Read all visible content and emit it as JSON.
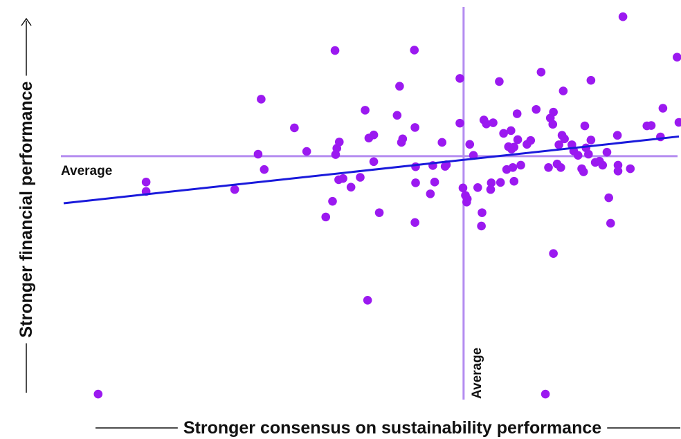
{
  "chart_data": {
    "type": "scatter",
    "title": "",
    "xlabel": "Stronger consensus on sustainability performance",
    "ylabel": "Stronger financial performance",
    "xlim": [
      0,
      100
    ],
    "ylim": [
      0,
      100
    ],
    "grid": false,
    "reference_lines": {
      "x_average": {
        "value": 65,
        "label": "Average"
      },
      "y_average": {
        "value": 62,
        "label": "Average"
      }
    },
    "trendline": {
      "x": [
        0,
        100
      ],
      "y": [
        50,
        67
      ]
    },
    "colors": {
      "points": "#9b19f0",
      "trendline": "#1a1adb",
      "reference": "#b48cf0",
      "text": "#111111"
    },
    "points": [
      {
        "x": 5.6,
        "y": 1.4
      },
      {
        "x": 13.4,
        "y": 55.4
      },
      {
        "x": 13.4,
        "y": 53.0
      },
      {
        "x": 27.8,
        "y": 53.5
      },
      {
        "x": 31.6,
        "y": 62.5
      },
      {
        "x": 32.1,
        "y": 76.5
      },
      {
        "x": 32.6,
        "y": 58.6
      },
      {
        "x": 37.5,
        "y": 69.2
      },
      {
        "x": 39.5,
        "y": 63.2
      },
      {
        "x": 42.6,
        "y": 46.5
      },
      {
        "x": 43.7,
        "y": 50.5
      },
      {
        "x": 44.1,
        "y": 88.9
      },
      {
        "x": 44.2,
        "y": 62.4
      },
      {
        "x": 44.4,
        "y": 64.0
      },
      {
        "x": 44.8,
        "y": 65.6
      },
      {
        "x": 44.7,
        "y": 56.0
      },
      {
        "x": 45.4,
        "y": 56.3
      },
      {
        "x": 46.7,
        "y": 54.1
      },
      {
        "x": 48.2,
        "y": 56.6
      },
      {
        "x": 49.0,
        "y": 73.7
      },
      {
        "x": 49.4,
        "y": 25.3
      },
      {
        "x": 49.6,
        "y": 66.6
      },
      {
        "x": 50.4,
        "y": 67.4
      },
      {
        "x": 50.4,
        "y": 60.6
      },
      {
        "x": 51.3,
        "y": 47.6
      },
      {
        "x": 54.2,
        "y": 72.4
      },
      {
        "x": 54.6,
        "y": 79.8
      },
      {
        "x": 54.9,
        "y": 65.5
      },
      {
        "x": 55.1,
        "y": 66.4
      },
      {
        "x": 57.0,
        "y": 89.0
      },
      {
        "x": 57.1,
        "y": 69.3
      },
      {
        "x": 57.2,
        "y": 59.3
      },
      {
        "x": 57.2,
        "y": 55.2
      },
      {
        "x": 57.1,
        "y": 45.1
      },
      {
        "x": 60.0,
        "y": 59.6
      },
      {
        "x": 59.6,
        "y": 52.4
      },
      {
        "x": 60.3,
        "y": 55.4
      },
      {
        "x": 61.5,
        "y": 65.5
      },
      {
        "x": 62.0,
        "y": 59.4
      },
      {
        "x": 62.2,
        "y": 59.8
      },
      {
        "x": 64.4,
        "y": 81.8
      },
      {
        "x": 64.4,
        "y": 70.4
      },
      {
        "x": 64.9,
        "y": 53.9
      },
      {
        "x": 65.3,
        "y": 52.0
      },
      {
        "x": 65.5,
        "y": 50.3
      },
      {
        "x": 65.6,
        "y": 51.1
      },
      {
        "x": 66.0,
        "y": 65.0
      },
      {
        "x": 66.6,
        "y": 62.2
      },
      {
        "x": 67.3,
        "y": 54.0
      },
      {
        "x": 67.9,
        "y": 44.2
      },
      {
        "x": 68.0,
        "y": 47.6
      },
      {
        "x": 68.3,
        "y": 71.2
      },
      {
        "x": 68.7,
        "y": 70.2
      },
      {
        "x": 69.4,
        "y": 53.5
      },
      {
        "x": 69.5,
        "y": 55.2
      },
      {
        "x": 69.8,
        "y": 70.5
      },
      {
        "x": 70.8,
        "y": 81.0
      },
      {
        "x": 71.0,
        "y": 55.3
      },
      {
        "x": 71.5,
        "y": 67.8
      },
      {
        "x": 72.0,
        "y": 58.6
      },
      {
        "x": 72.3,
        "y": 64.4
      },
      {
        "x": 72.7,
        "y": 68.5
      },
      {
        "x": 72.8,
        "y": 63.8
      },
      {
        "x": 73.0,
        "y": 59.1
      },
      {
        "x": 73.2,
        "y": 64.3
      },
      {
        "x": 73.2,
        "y": 55.6
      },
      {
        "x": 73.7,
        "y": 72.8
      },
      {
        "x": 73.8,
        "y": 66.2
      },
      {
        "x": 74.3,
        "y": 59.7
      },
      {
        "x": 75.3,
        "y": 65.0
      },
      {
        "x": 75.9,
        "y": 66.0
      },
      {
        "x": 76.8,
        "y": 73.9
      },
      {
        "x": 77.6,
        "y": 83.4
      },
      {
        "x": 78.8,
        "y": 59.1
      },
      {
        "x": 79.1,
        "y": 71.7
      },
      {
        "x": 79.5,
        "y": 70.1
      },
      {
        "x": 79.6,
        "y": 73.2
      },
      {
        "x": 79.6,
        "y": 37.2
      },
      {
        "x": 80.2,
        "y": 60.0
      },
      {
        "x": 80.5,
        "y": 64.9
      },
      {
        "x": 80.8,
        "y": 59.1
      },
      {
        "x": 81.0,
        "y": 67.3
      },
      {
        "x": 81.2,
        "y": 78.6
      },
      {
        "x": 81.4,
        "y": 66.4
      },
      {
        "x": 82.6,
        "y": 64.9
      },
      {
        "x": 82.9,
        "y": 63.3
      },
      {
        "x": 83.6,
        "y": 62.2
      },
      {
        "x": 84.2,
        "y": 58.8
      },
      {
        "x": 84.5,
        "y": 58.0
      },
      {
        "x": 84.7,
        "y": 69.7
      },
      {
        "x": 84.9,
        "y": 64.1
      },
      {
        "x": 85.3,
        "y": 62.5
      },
      {
        "x": 85.7,
        "y": 66.1
      },
      {
        "x": 85.7,
        "y": 81.3
      },
      {
        "x": 86.4,
        "y": 60.4
      },
      {
        "x": 87.1,
        "y": 60.7
      },
      {
        "x": 87.6,
        "y": 59.7
      },
      {
        "x": 88.3,
        "y": 63.0
      },
      {
        "x": 88.6,
        "y": 51.4
      },
      {
        "x": 88.9,
        "y": 44.9
      },
      {
        "x": 90.0,
        "y": 67.3
      },
      {
        "x": 90.1,
        "y": 59.7
      },
      {
        "x": 90.1,
        "y": 58.2
      },
      {
        "x": 90.9,
        "y": 97.5
      },
      {
        "x": 92.1,
        "y": 58.8
      },
      {
        "x": 94.8,
        "y": 69.7
      },
      {
        "x": 95.5,
        "y": 69.8
      },
      {
        "x": 97.0,
        "y": 66.9
      },
      {
        "x": 97.4,
        "y": 74.2
      },
      {
        "x": 100.0,
        "y": 70.6
      },
      {
        "x": 99.7,
        "y": 87.2
      },
      {
        "x": 78.3,
        "y": 1.4
      }
    ]
  }
}
